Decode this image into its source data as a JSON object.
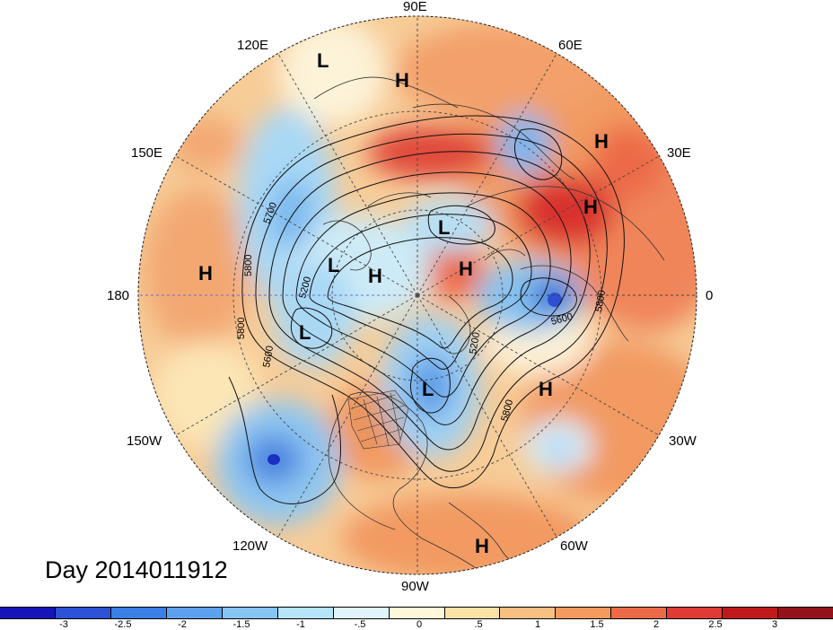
{
  "map": {
    "title": "Day 2014011912",
    "projection": "north-polar-stereographic",
    "longitude_labels": {
      "lon_0": "0",
      "lon_30e": "30E",
      "lon_60e": "60E",
      "lon_90e": "90E",
      "lon_120e": "120E",
      "lon_150e": "150E",
      "lon_180": "180",
      "lon_150w": "150W",
      "lon_120w": "120W",
      "lon_90w": "90W",
      "lon_60w": "60W",
      "lon_30w": "30W"
    },
    "pressure_centers": {
      "top_l": "L",
      "top_h": "H",
      "ne_h1": "H",
      "ne_h2": "H",
      "center_l": "L",
      "west_h": "H",
      "west_l": "L",
      "mid_h": "H",
      "center_h": "H",
      "sw_l": "L",
      "na_l": "L",
      "atl_h": "H",
      "sa_h": "H"
    },
    "contour_labels": {
      "c5700": "5700",
      "c5800_w": "5800",
      "c5200_w": "5200",
      "c5800_sw": "5800",
      "c5600_w": "5600",
      "c5200_e": "5200",
      "c5800_s": "5800",
      "c5600_e": "5600",
      "c5800_e": "5800"
    },
    "colorbar": {
      "colors": [
        "#1616b8",
        "#2c52d6",
        "#3a7ee6",
        "#5ea2ef",
        "#86c5f3",
        "#b6e4f8",
        "#e0f4fb",
        "#fff7d9",
        "#fae2a6",
        "#f7bf82",
        "#f39a5f",
        "#ec6a47",
        "#df3b34",
        "#c0191c",
        "#94121a"
      ],
      "labels": {
        "n3": "-3",
        "n25": "-2.5",
        "n2": "-2",
        "n15": "-1.5",
        "n1": "-1",
        "n05": "-.5",
        "z0": "0",
        "p05": ".5",
        "p1": "1",
        "p15": "1.5",
        "p2": "2",
        "p25": "2.5",
        "p3": "3"
      }
    }
  }
}
